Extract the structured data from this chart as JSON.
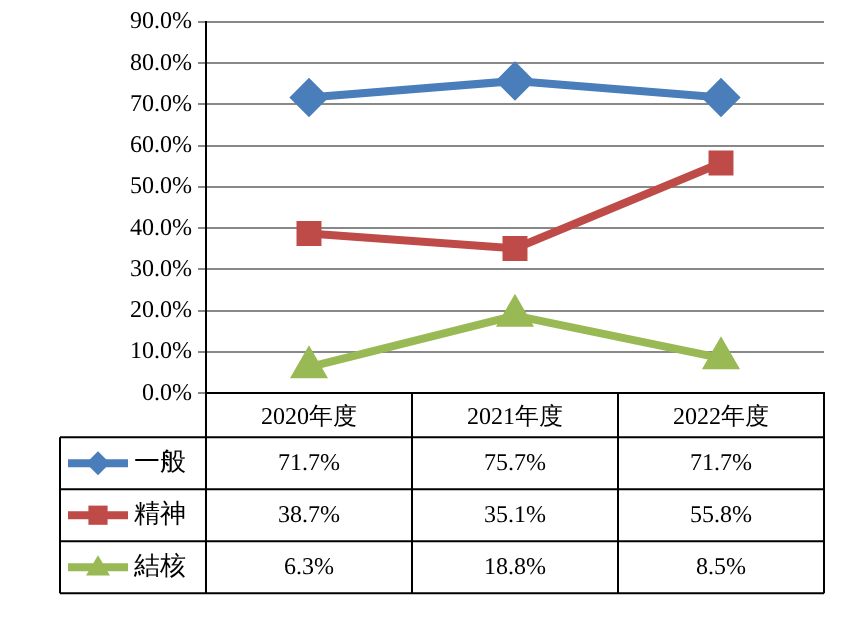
{
  "chart_data": {
    "type": "line",
    "categories": [
      "2020年度",
      "2021年度",
      "2022年度"
    ],
    "series": [
      {
        "name": "一般",
        "color": "#4a7ebb",
        "marker": "diamond",
        "values": [
          71.7,
          75.7,
          71.7
        ],
        "value_labels": [
          "71.7%",
          "75.7%",
          "71.7%"
        ]
      },
      {
        "name": "精神",
        "color": "#be4b48",
        "marker": "square",
        "values": [
          38.7,
          35.1,
          55.8
        ],
        "value_labels": [
          "38.7%",
          "35.1%",
          "55.8%"
        ]
      },
      {
        "name": "結核",
        "color": "#98b954",
        "marker": "triangle",
        "values": [
          6.3,
          18.8,
          8.5
        ],
        "value_labels": [
          "6.3%",
          "18.8%",
          "8.5%"
        ]
      }
    ],
    "ylim": [
      0,
      90
    ],
    "yticks": [
      {
        "value": 0,
        "label": "0.0%"
      },
      {
        "value": 10,
        "label": "10.0%"
      },
      {
        "value": 20,
        "label": "20.0%"
      },
      {
        "value": 30,
        "label": "30.0%"
      },
      {
        "value": 40,
        "label": "40.0%"
      },
      {
        "value": 50,
        "label": "50.0%"
      },
      {
        "value": 60,
        "label": "60.0%"
      },
      {
        "value": 70,
        "label": "70.0%"
      },
      {
        "value": 80,
        "label": "80.0%"
      },
      {
        "value": 90,
        "label": "90.0%"
      }
    ],
    "grid": "y",
    "legend": "bottom",
    "line_style": "solid"
  }
}
